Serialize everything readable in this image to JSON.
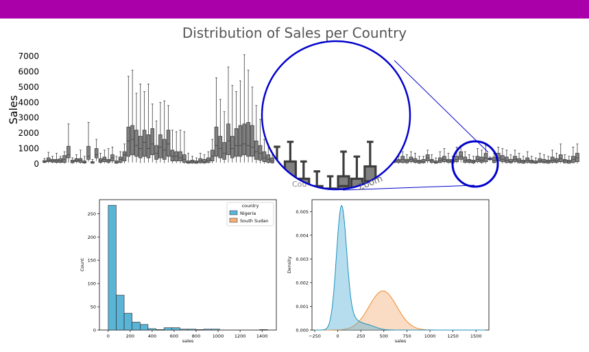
{
  "colors": {
    "banner": "#aa00aa",
    "box": "#808080",
    "box_edge": "#3d3d3d",
    "highlight": "#1a1aff",
    "zoom_ring": "#0000cc",
    "nigeria": "#5ab4d6",
    "south_sudan": "#f5b07a"
  },
  "page_title": "Distribution of Sales per Country",
  "chart_data": [
    {
      "type": "box",
      "title": "Distribution of Sales per Country",
      "ylabel": "Sales",
      "xlabel": "Cou",
      "ylim": [
        0,
        7000
      ],
      "yticks": [
        0,
        1000,
        2000,
        3000,
        4000,
        5000,
        6000,
        7000
      ],
      "note": "many per-country boxes; one highlighted box in blue inside the zoom",
      "zoom_label": "Zoom",
      "boxes_left": [
        [
          50,
          100,
          150,
          220,
          360
        ],
        [
          60,
          150,
          250,
          400,
          760
        ],
        [
          50,
          120,
          200,
          300,
          500
        ],
        [
          30,
          100,
          200,
          300,
          700
        ],
        [
          40,
          100,
          200,
          350,
          500
        ],
        [
          20,
          100,
          300,
          550,
          800
        ],
        [
          100,
          400,
          600,
          1150,
          2600
        ],
        [
          20,
          80,
          150,
          250,
          400
        ],
        [
          50,
          150,
          250,
          350,
          600
        ],
        [
          30,
          100,
          250,
          350,
          900
        ],
        [
          20,
          60,
          120,
          200,
          500
        ],
        [
          150,
          300,
          500,
          1150,
          2700
        ],
        [
          10,
          50,
          100,
          150,
          300
        ],
        [
          200,
          400,
          600,
          1000,
          1600
        ],
        [
          30,
          100,
          200,
          350,
          700
        ],
        [
          50,
          150,
          300,
          450,
          900
        ],
        [
          20,
          100,
          200,
          300,
          1000
        ],
        [
          50,
          200,
          400,
          600,
          1100
        ],
        [
          10,
          50,
          100,
          200,
          500
        ],
        [
          40,
          100,
          300,
          450,
          800
        ],
        [
          50,
          200,
          600,
          800,
          1300
        ],
        [
          100,
          500,
          1500,
          2400,
          5700
        ],
        [
          100,
          600,
          1600,
          2500,
          6100
        ],
        [
          100,
          500,
          1200,
          2200,
          4600
        ],
        [
          50,
          400,
          1000,
          1800,
          5200
        ],
        [
          80,
          500,
          1400,
          2200,
          4700
        ],
        [
          100,
          400,
          1000,
          1900,
          5200
        ],
        [
          100,
          600,
          1300,
          2300,
          3900
        ],
        [
          50,
          300,
          700,
          1200,
          2800
        ],
        [
          100,
          400,
          1100,
          1900,
          4000
        ],
        [
          50,
          300,
          900,
          1600,
          4100
        ],
        [
          100,
          500,
          1300,
          2200,
          3800
        ],
        [
          50,
          200,
          500,
          900,
          2200
        ],
        [
          50,
          200,
          500,
          800,
          2100
        ],
        [
          50,
          200,
          400,
          800,
          2200
        ],
        [
          20,
          100,
          300,
          600,
          2100
        ],
        [
          10,
          50,
          100,
          200,
          700
        ],
        [
          20,
          60,
          150,
          250,
          500
        ],
        [
          10,
          50,
          120,
          200,
          400
        ],
        [
          20,
          80,
          200,
          350,
          700
        ],
        [
          10,
          60,
          150,
          300,
          600
        ],
        [
          30,
          100,
          250,
          400,
          800
        ],
        [
          50,
          200,
          500,
          900,
          1600
        ],
        [
          100,
          500,
          1200,
          2400,
          5600
        ],
        [
          100,
          400,
          1000,
          1800,
          4200
        ],
        [
          50,
          300,
          700,
          1400,
          3400
        ],
        [
          100,
          600,
          1500,
          2600,
          6300
        ],
        [
          100,
          400,
          1000,
          1800,
          5100
        ],
        [
          100,
          500,
          1200,
          2300,
          4700
        ],
        [
          100,
          500,
          1200,
          2500,
          5400
        ],
        [
          100,
          600,
          1300,
          2600,
          7100
        ],
        [
          100,
          500,
          1200,
          2700,
          6100
        ],
        [
          100,
          500,
          1100,
          2500,
          5000
        ],
        [
          50,
          300,
          800,
          1500,
          3800
        ],
        [
          50,
          250,
          700,
          1200,
          2900
        ],
        [
          30,
          150,
          400,
          800,
          1600
        ],
        [
          20,
          100,
          300,
          600,
          1300
        ],
        [
          10,
          80,
          200,
          400,
          800
        ]
      ],
      "boxes_right": [
        [
          20,
          100,
          200,
          300,
          700
        ],
        [
          10,
          50,
          150,
          250,
          600
        ],
        [
          50,
          100,
          200,
          300,
          600
        ],
        [
          10,
          100,
          200,
          300,
          500
        ],
        [
          20,
          100,
          300,
          500,
          800
        ],
        [
          10,
          80,
          200,
          300,
          600
        ],
        [
          50,
          150,
          300,
          450,
          800
        ],
        [
          30,
          100,
          200,
          350,
          700
        ],
        [
          10,
          50,
          150,
          250,
          500
        ],
        [
          20,
          80,
          150,
          300,
          500
        ],
        [
          50,
          200,
          400,
          600,
          900
        ],
        [
          20,
          100,
          200,
          300,
          600
        ],
        [
          10,
          50,
          100,
          200,
          400
        ],
        [
          30,
          100,
          250,
          400,
          800
        ],
        [
          50,
          150,
          300,
          500,
          1000
        ],
        [
          20,
          100,
          200,
          300,
          700
        ],
        [
          10,
          80,
          200,
          300,
          500
        ],
        [
          50,
          150,
          300,
          500,
          1100
        ],
        [
          100,
          300,
          500,
          800,
          1200
        ],
        [
          30,
          100,
          250,
          450,
          800
        ],
        [
          20,
          100,
          200,
          300,
          600
        ],
        [
          10,
          60,
          150,
          250,
          500
        ],
        [
          50,
          150,
          300,
          500,
          1000
        ],
        [
          20,
          100,
          250,
          450,
          900
        ],
        [
          30,
          150,
          400,
          700,
          1200
        ],
        [
          200,
          280,
          330,
          380,
          450
        ],
        [
          20,
          100,
          250,
          450,
          700
        ],
        [
          50,
          200,
          400,
          700,
          1100
        ],
        [
          30,
          150,
          300,
          550,
          1000
        ],
        [
          20,
          100,
          250,
          450,
          900
        ],
        [
          10,
          80,
          150,
          300,
          600
        ],
        [
          50,
          150,
          300,
          500,
          900
        ],
        [
          20,
          80,
          200,
          350,
          700
        ],
        [
          10,
          50,
          150,
          250,
          500
        ],
        [
          30,
          100,
          250,
          400,
          800
        ],
        [
          20,
          60,
          150,
          250,
          500
        ],
        [
          10,
          50,
          100,
          200,
          400
        ],
        [
          50,
          100,
          200,
          350,
          700
        ],
        [
          20,
          80,
          150,
          300,
          600
        ],
        [
          10,
          50,
          150,
          250,
          500
        ],
        [
          30,
          100,
          250,
          450,
          900
        ],
        [
          20,
          100,
          200,
          350,
          700
        ],
        [
          50,
          150,
          350,
          600,
          1300
        ],
        [
          20,
          80,
          200,
          300,
          600
        ],
        [
          10,
          50,
          150,
          250,
          500
        ],
        [
          20,
          100,
          300,
          500,
          1100
        ],
        [
          30,
          150,
          400,
          700,
          1300
        ]
      ]
    },
    {
      "type": "bar",
      "subtype": "histogram",
      "xlabel": "sales",
      "ylabel": "Count",
      "xticks": [
        0,
        200,
        400,
        600,
        800,
        1000,
        1200,
        1400
      ],
      "yticks": [
        0,
        50,
        100,
        150,
        200,
        250
      ],
      "ylim": [
        0,
        280
      ],
      "bin_edges": [
        0,
        72.5,
        145,
        217.5,
        290,
        362.5,
        435,
        507.5,
        580,
        652.5,
        725,
        797.5,
        870,
        942.5,
        1015,
        1087.5,
        1160,
        1232.5,
        1305,
        1377.5,
        1450
      ],
      "series": [
        {
          "name": "Nigeria",
          "counts": [
            268,
            75,
            36,
            17,
            12,
            3,
            1,
            5,
            5,
            2,
            2,
            1,
            2,
            2,
            0,
            0,
            0,
            0,
            0,
            1
          ]
        },
        {
          "name": "South Sudan",
          "counts": [
            0,
            0,
            0,
            0,
            0,
            0,
            0,
            0,
            0,
            0,
            0,
            0,
            0,
            0,
            0,
            0,
            0,
            0,
            0,
            0
          ]
        }
      ],
      "legend": {
        "title": "country",
        "position": "top-right"
      }
    },
    {
      "type": "area",
      "subtype": "kde",
      "xlabel": "sales",
      "ylabel": "Density",
      "xticks": [
        -250,
        0,
        250,
        500,
        750,
        1000,
        1250,
        1500
      ],
      "yticks": [
        0.0,
        0.001,
        0.002,
        0.003,
        0.004,
        0.005
      ],
      "ytick_labels": [
        "0.000",
        "0.001",
        "0.002",
        "0.003",
        "0.004",
        "0.005"
      ],
      "xlim": [
        -280,
        1640
      ],
      "ylim": [
        0,
        0.0055
      ],
      "series": [
        {
          "name": "Nigeria",
          "components": [
            [
              40,
              55,
              0.0051
            ],
            [
              150,
              80,
              0.0004
            ],
            [
              320,
              90,
              0.0002
            ]
          ]
        },
        {
          "name": "South Sudan",
          "components": [
            [
              490,
              150,
              0.00165
            ]
          ]
        }
      ]
    }
  ]
}
